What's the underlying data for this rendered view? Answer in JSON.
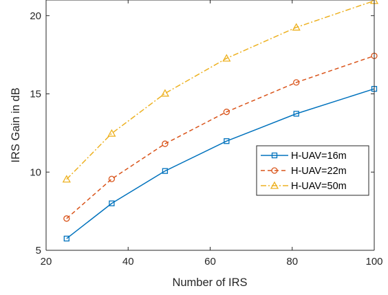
{
  "chart_data": {
    "type": "line",
    "xlabel": "Number of IRS",
    "ylabel": "IRS Gain in dB",
    "xlim": [
      20,
      100
    ],
    "ylim": [
      5,
      21
    ],
    "xticks": [
      20,
      40,
      60,
      80,
      100
    ],
    "yticks": [
      5,
      10,
      15,
      20
    ],
    "grid": false,
    "legend_position": "right",
    "x": [
      25,
      36,
      49,
      64,
      81,
      100
    ],
    "series": [
      {
        "name": "H-UAV=16m",
        "values": [
          5.75,
          8.0,
          10.07,
          11.98,
          13.73,
          15.32
        ],
        "color": "#0072BD",
        "line_style": "solid",
        "marker": "square"
      },
      {
        "name": "H-UAV=22m",
        "values": [
          7.03,
          9.56,
          11.81,
          13.85,
          15.73,
          17.43
        ],
        "color": "#D95319",
        "line_style": "dashed",
        "marker": "circle"
      },
      {
        "name": "H-UAV=50m",
        "values": [
          9.54,
          12.47,
          15.03,
          17.27,
          19.25,
          20.95
        ],
        "color": "#EDB120",
        "line_style": "dashdot",
        "marker": "triangle"
      }
    ]
  }
}
